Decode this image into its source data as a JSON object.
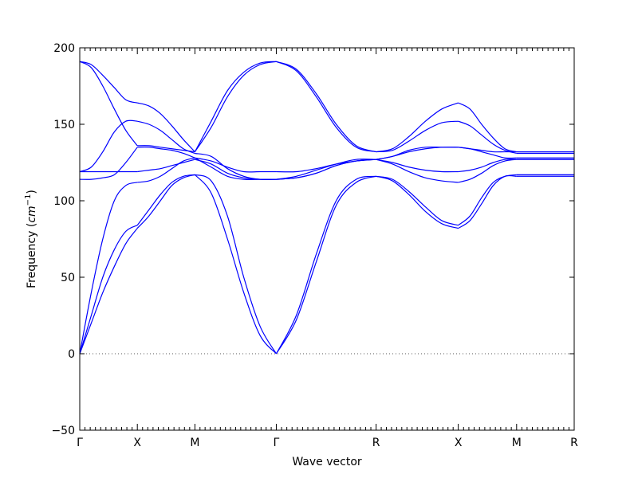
{
  "chart_data": {
    "type": "line",
    "title": "",
    "xlabel": "Wave vector",
    "ylabel_prefix": "Frequency (",
    "ylabel_unit": "cm",
    "ylabel_exp": "−1",
    "ylabel_suffix": ")",
    "ylim": [
      -50,
      200
    ],
    "yticks": [
      -50,
      0,
      50,
      100,
      150,
      200
    ],
    "ytick_labels": [
      "−50",
      "0",
      "50",
      "100",
      "150",
      "200"
    ],
    "xlim": [
      0,
      6.44
    ],
    "high_symmetry_points": [
      {
        "label": "Γ",
        "x": 0
      },
      {
        "label": "X",
        "x": 0.75
      },
      {
        "label": "M",
        "x": 1.5
      },
      {
        "label": "Γ",
        "x": 2.56
      },
      {
        "label": "R",
        "x": 3.86
      },
      {
        "label": "X",
        "x": 4.93
      },
      {
        "label": "M",
        "x": 5.69
      },
      {
        "label": "R",
        "x": 6.44
      }
    ],
    "zero_line": true,
    "line_color": "#0000ff",
    "zero_line_color": "#555555",
    "segments": [
      {
        "from": "Γ",
        "to": "X",
        "bands": [
          [
            0,
            20,
            40,
            57,
            72,
            82
          ],
          [
            0,
            25,
            50,
            68,
            80,
            84
          ],
          [
            0,
            40,
            75,
            100,
            110,
            112
          ],
          [
            114,
            114,
            115,
            117,
            125,
            135
          ],
          [
            119,
            119,
            119,
            119,
            119,
            119
          ],
          [
            119,
            122,
            132,
            145,
            152,
            152
          ],
          [
            191,
            189,
            182,
            174,
            166,
            164
          ],
          [
            191,
            187,
            175,
            160,
            146,
            136
          ]
        ]
      },
      {
        "from": "X",
        "to": "M",
        "bands": [
          [
            82,
            90,
            100,
            110,
            115,
            117
          ],
          [
            84,
            94,
            104,
            112,
            116,
            117
          ],
          [
            112,
            113,
            116,
            121,
            126,
            128
          ],
          [
            135,
            135,
            134,
            133,
            131,
            128
          ],
          [
            119,
            120,
            121,
            123,
            125,
            127
          ],
          [
            152,
            150,
            146,
            140,
            134,
            131
          ],
          [
            164,
            162,
            157,
            149,
            140,
            132
          ],
          [
            136,
            136,
            135,
            134,
            133,
            132
          ]
        ]
      },
      {
        "from": "M",
        "to": "Γ",
        "bands": [
          [
            117,
            113,
            90,
            50,
            18,
            0
          ],
          [
            117,
            105,
            75,
            40,
            12,
            0
          ],
          [
            128,
            122,
            116,
            114,
            114,
            114
          ],
          [
            128,
            126,
            122,
            119,
            119,
            119
          ],
          [
            127,
            124,
            118,
            115,
            114,
            114
          ],
          [
            131,
            129,
            121,
            116,
            114,
            114
          ],
          [
            132,
            148,
            168,
            182,
            189,
            191
          ],
          [
            132,
            152,
            172,
            184,
            190,
            191
          ]
        ]
      },
      {
        "from": "Γ",
        "to": "R",
        "bands": [
          [
            0,
            25,
            65,
            100,
            114,
            116
          ],
          [
            0,
            22,
            60,
            97,
            112,
            116
          ],
          [
            114,
            115,
            118,
            123,
            126,
            127
          ],
          [
            119,
            119,
            121,
            124,
            126,
            127
          ],
          [
            114,
            115,
            118,
            123,
            126,
            127
          ],
          [
            114,
            116,
            120,
            124,
            127,
            127
          ],
          [
            191,
            186,
            170,
            150,
            136,
            132
          ],
          [
            191,
            185,
            168,
            148,
            135,
            132
          ]
        ]
      },
      {
        "from": "R",
        "to": "X",
        "bands": [
          [
            116,
            113,
            104,
            93,
            85,
            82
          ],
          [
            116,
            114,
            106,
            96,
            87,
            84
          ],
          [
            127,
            124,
            119,
            115,
            113,
            112
          ],
          [
            127,
            125,
            122,
            120,
            119,
            119
          ],
          [
            127,
            129,
            132,
            134,
            135,
            135
          ],
          [
            127,
            129,
            133,
            135,
            135,
            135
          ],
          [
            132,
            134,
            142,
            152,
            160,
            164
          ],
          [
            132,
            133,
            139,
            146,
            151,
            152
          ]
        ]
      },
      {
        "from": "X",
        "to": "M",
        "bands": [
          [
            82,
            87,
            98,
            110,
            116,
            116
          ],
          [
            84,
            90,
            102,
            112,
            116,
            117
          ],
          [
            112,
            114,
            118,
            123,
            126,
            127
          ],
          [
            119,
            120,
            122,
            125,
            127,
            127
          ],
          [
            135,
            134,
            132,
            130,
            128,
            128
          ],
          [
            135,
            134,
            133,
            132,
            132,
            132
          ],
          [
            164,
            160,
            150,
            141,
            134,
            132
          ],
          [
            152,
            149,
            143,
            137,
            133,
            131
          ]
        ]
      },
      {
        "from": "M",
        "to": "R",
        "bands": [
          [
            116,
            116,
            116,
            116,
            116,
            116
          ],
          [
            117,
            117,
            117,
            117,
            117,
            117
          ],
          [
            127,
            127,
            127,
            127,
            127,
            127
          ],
          [
            128,
            128,
            128,
            128,
            128,
            128
          ],
          [
            127,
            127,
            127,
            127,
            127,
            127
          ],
          [
            131,
            131,
            131,
            131,
            131,
            131
          ],
          [
            132,
            132,
            132,
            132,
            132,
            132
          ],
          [
            132,
            132,
            132,
            132,
            132,
            132
          ]
        ]
      }
    ]
  }
}
